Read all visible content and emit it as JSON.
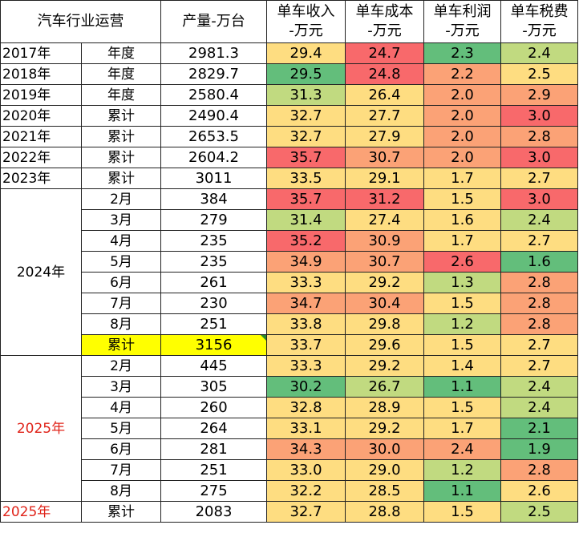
{
  "header": {
    "c1": "汽车行业运营",
    "c3": "产量-万台",
    "c4": [
      "单车收入",
      "-万元"
    ],
    "c5": [
      "单车成本",
      "-万元"
    ],
    "c6": [
      "单车利润",
      "-万元"
    ],
    "c7": [
      "单车税费",
      "-万元"
    ]
  },
  "colors": {
    "red": "#f8696b",
    "orange": "#fba276",
    "yellow": "#fedd81",
    "lightgreen": "#c1da80",
    "green": "#63be7b",
    "highlight": "#ffff00",
    "red_text": "#e0241a"
  },
  "annual": [
    {
      "year": "2017年",
      "period": "年度",
      "prod": "2981.3",
      "rev": "29.4",
      "cost": "24.7",
      "profit": "2.3",
      "tax": "2.4"
    },
    {
      "year": "2018年",
      "period": "年度",
      "prod": "2829.7",
      "rev": "29.5",
      "cost": "24.8",
      "profit": "2.2",
      "tax": "2.5"
    },
    {
      "year": "2019年",
      "period": "年度",
      "prod": "2580.4",
      "rev": "31.3",
      "cost": "26.4",
      "profit": "2.0",
      "tax": "2.9"
    },
    {
      "year": "2020年",
      "period": "累计",
      "prod": "2490.4",
      "rev": "32.7",
      "cost": "27.7",
      "profit": "2.0",
      "tax": "3.0"
    },
    {
      "year": "2021年",
      "period": "累计",
      "prod": "2653.5",
      "rev": "32.7",
      "cost": "27.9",
      "profit": "2.0",
      "tax": "2.8"
    },
    {
      "year": "2022年",
      "period": "累计",
      "prod": "2604.2",
      "rev": "35.7",
      "cost": "30.7",
      "profit": "2.0",
      "tax": "3.0"
    },
    {
      "year": "2023年",
      "period": "累计",
      "prod": "3011",
      "rev": "33.5",
      "cost": "29.1",
      "profit": "1.7",
      "tax": "2.7"
    }
  ],
  "y2024": {
    "label": "2024年",
    "rows": [
      {
        "period": "2月",
        "prod": "384",
        "rev": "35.7",
        "cost": "31.2",
        "profit": "1.5",
        "tax": "3.0"
      },
      {
        "period": "3月",
        "prod": "279",
        "rev": "31.4",
        "cost": "27.4",
        "profit": "1.6",
        "tax": "2.4"
      },
      {
        "period": "4月",
        "prod": "235",
        "rev": "35.2",
        "cost": "30.9",
        "profit": "1.7",
        "tax": "2.7"
      },
      {
        "period": "5月",
        "prod": "235",
        "rev": "34.9",
        "cost": "30.7",
        "profit": "2.6",
        "tax": "1.6"
      },
      {
        "period": "6月",
        "prod": "261",
        "rev": "33.3",
        "cost": "29.2",
        "profit": "1.3",
        "tax": "2.8"
      },
      {
        "period": "7月",
        "prod": "230",
        "rev": "34.7",
        "cost": "30.4",
        "profit": "1.5",
        "tax": "2.8"
      },
      {
        "period": "8月",
        "prod": "251",
        "rev": "33.8",
        "cost": "29.8",
        "profit": "1.2",
        "tax": "2.8"
      },
      {
        "period": "累计",
        "prod": "3156",
        "rev": "33.7",
        "cost": "29.6",
        "profit": "1.5",
        "tax": "2.7"
      }
    ]
  },
  "y2025": {
    "label": "2025年",
    "rows": [
      {
        "period": "2月",
        "prod": "445",
        "rev": "33.3",
        "cost": "29.2",
        "profit": "1.4",
        "tax": "2.7"
      },
      {
        "period": "3月",
        "prod": "305",
        "rev": "30.2",
        "cost": "26.7",
        "profit": "1.1",
        "tax": "2.4"
      },
      {
        "period": "4月",
        "prod": "260",
        "rev": "32.8",
        "cost": "28.9",
        "profit": "1.5",
        "tax": "2.4"
      },
      {
        "period": "5月",
        "prod": "264",
        "rev": "33.1",
        "cost": "29.2",
        "profit": "1.7",
        "tax": "2.1"
      },
      {
        "period": "6月",
        "prod": "281",
        "rev": "34.3",
        "cost": "30.0",
        "profit": "2.4",
        "tax": "1.9"
      },
      {
        "period": "7月",
        "prod": "251",
        "rev": "33.0",
        "cost": "29.0",
        "profit": "1.2",
        "tax": "2.8"
      },
      {
        "period": "8月",
        "prod": "275",
        "rev": "32.2",
        "cost": "28.5",
        "profit": "1.1",
        "tax": "2.6"
      }
    ]
  },
  "ytd2025": {
    "year": "2025年",
    "period": "累计",
    "prod": "2083",
    "rev": "32.7",
    "cost": "28.8",
    "profit": "1.5",
    "tax": "2.5"
  }
}
